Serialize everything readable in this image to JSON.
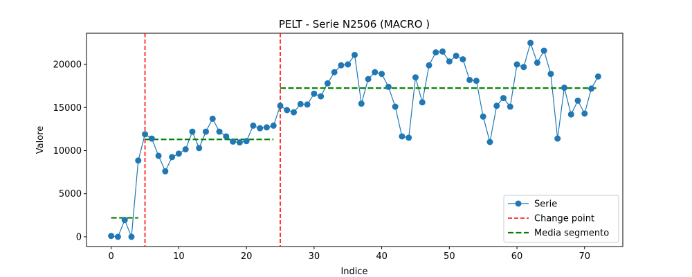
{
  "chart_data": {
    "type": "line",
    "title": "PELT - Serie N2506 (MACRO       )",
    "xlabel": "Indice",
    "ylabel": "Valore",
    "xlim": [
      -3.65,
      75.65
    ],
    "ylim": [
      -1130,
      23620
    ],
    "xticks": [
      0,
      10,
      20,
      30,
      40,
      50,
      60,
      70
    ],
    "yticks": [
      0,
      5000,
      10000,
      15000,
      20000
    ],
    "grid": false,
    "legend_position": "bottom-right",
    "legend": [
      "Serie",
      "Change point",
      "Media segmento"
    ],
    "colors": {
      "series": "#1f77b4",
      "change_point": "#ff0000",
      "segment_mean": "#008000"
    },
    "series": [
      {
        "name": "Serie",
        "x": [
          0,
          1,
          2,
          3,
          4,
          5,
          6,
          7,
          8,
          9,
          10,
          11,
          12,
          13,
          14,
          15,
          16,
          17,
          18,
          19,
          20,
          21,
          22,
          23,
          24,
          25,
          26,
          27,
          28,
          29,
          30,
          31,
          32,
          33,
          34,
          35,
          36,
          37,
          38,
          39,
          40,
          41,
          42,
          43,
          44,
          45,
          46,
          47,
          48,
          49,
          50,
          51,
          52,
          53,
          54,
          55,
          56,
          57,
          58,
          59,
          60,
          61,
          62,
          63,
          64,
          65,
          66,
          67,
          68,
          69,
          70,
          71,
          72
        ],
        "values": [
          100,
          0,
          1950,
          0,
          8850,
          11900,
          11400,
          9400,
          7600,
          9250,
          9650,
          10150,
          12200,
          10300,
          12200,
          13700,
          12200,
          11650,
          11050,
          10950,
          11100,
          12900,
          12600,
          12700,
          12900,
          15200,
          14700,
          14450,
          15400,
          15350,
          16600,
          16300,
          17800,
          19100,
          19900,
          20000,
          21100,
          15450,
          18300,
          19100,
          18900,
          17400,
          15100,
          11650,
          11500,
          18500,
          15600,
          19900,
          21400,
          21500,
          20350,
          21000,
          20600,
          18200,
          18100,
          13950,
          11000,
          15200,
          16100,
          15100,
          20000,
          19700,
          22500,
          20200,
          21600,
          18900,
          11400,
          17300,
          14200,
          15800,
          14300,
          17200,
          18600
        ]
      }
    ],
    "change_points": [
      5,
      25
    ],
    "segment_means": [
      {
        "x_start": 0,
        "x_end": 4,
        "value": 2200
      },
      {
        "x_start": 5,
        "x_end": 24,
        "value": 11300
      },
      {
        "x_start": 25,
        "x_end": 72,
        "value": 17250
      }
    ]
  }
}
